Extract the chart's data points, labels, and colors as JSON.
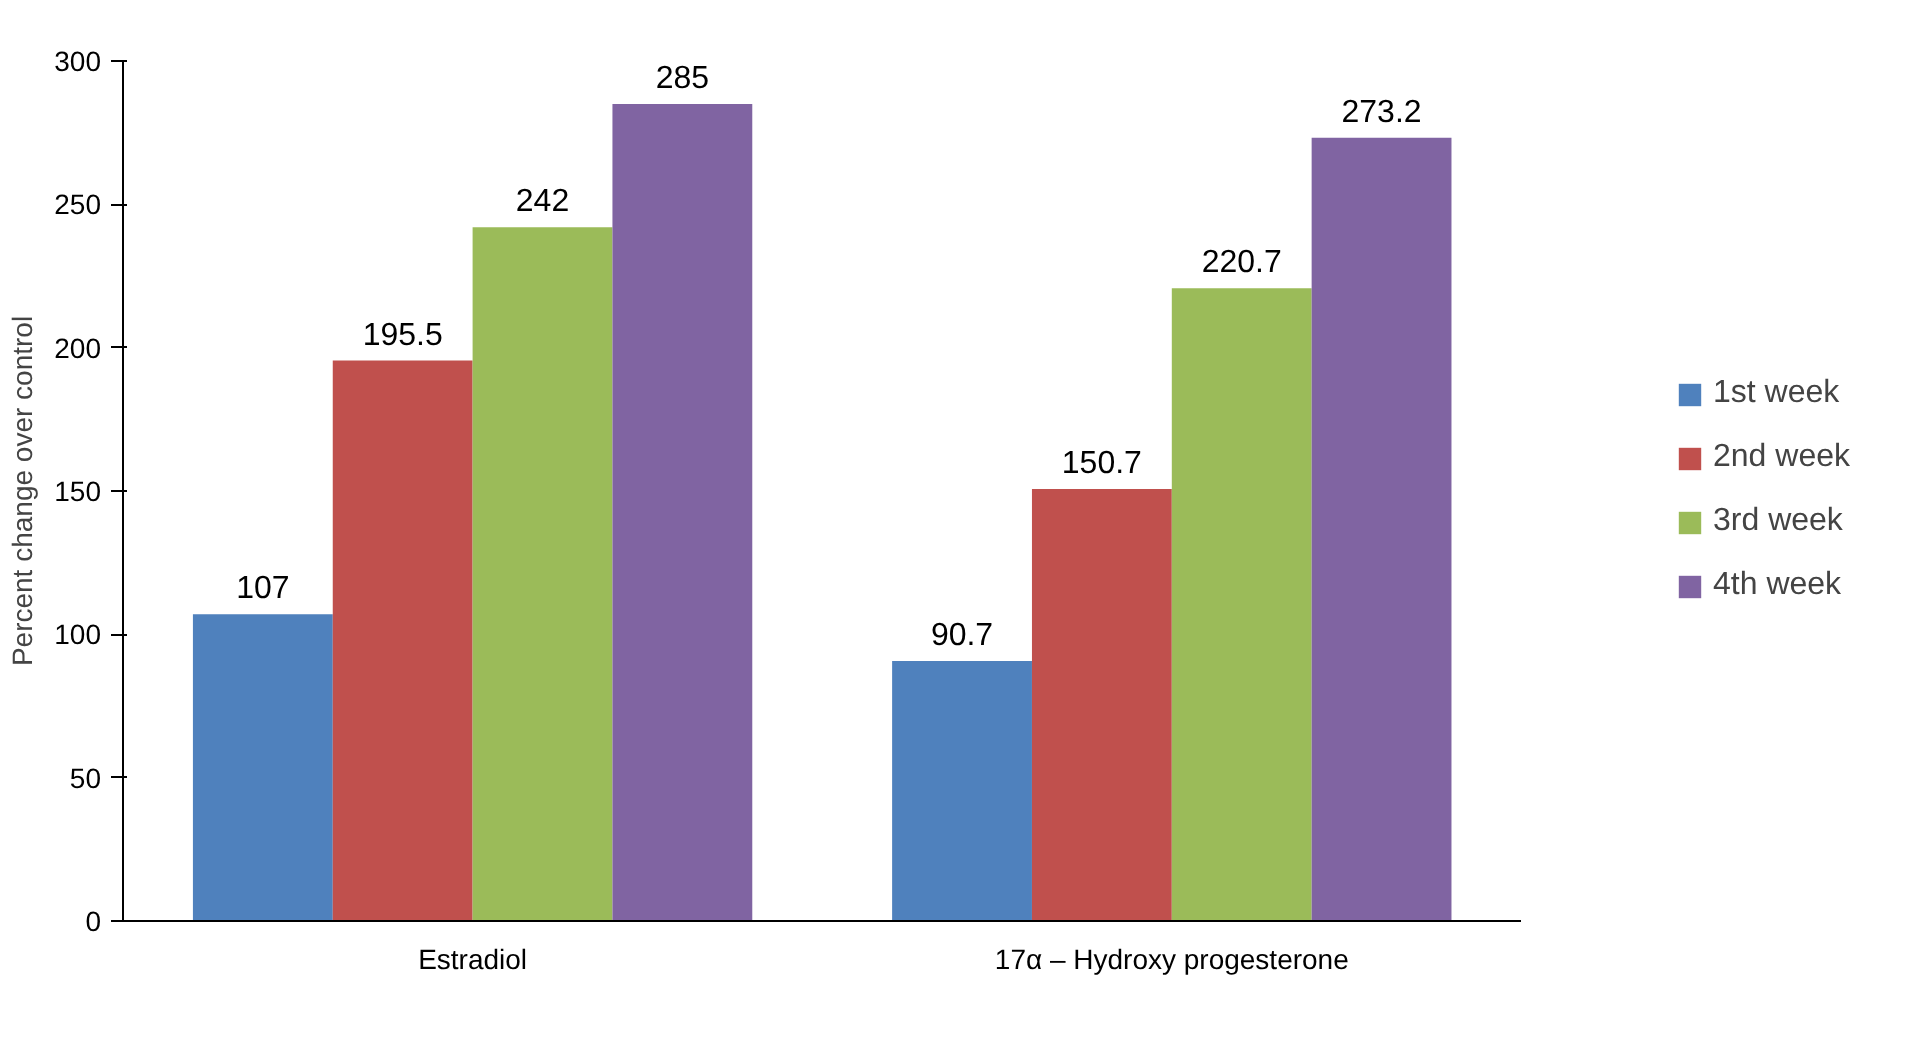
{
  "chart_data": {
    "type": "bar",
    "ylabel": "Percent change over control",
    "categories": [
      "Estradiol",
      "17α – Hydroxy progesterone"
    ],
    "series": [
      {
        "name": "1st week",
        "color": "#4f81bd",
        "values": [
          107,
          90.7
        ]
      },
      {
        "name": "2nd week",
        "color": "#c0504d",
        "values": [
          195.5,
          150.7
        ]
      },
      {
        "name": "3rd week",
        "color": "#9bbb59",
        "values": [
          242,
          220.7
        ]
      },
      {
        "name": "4th week",
        "color": "#8064a2",
        "values": [
          285,
          273.2
        ]
      }
    ],
    "ylim": [
      0,
      300
    ],
    "yticks": [
      0,
      50,
      100,
      150,
      200,
      250,
      300
    ],
    "grid": false,
    "legend": "right",
    "data_labels": true
  }
}
